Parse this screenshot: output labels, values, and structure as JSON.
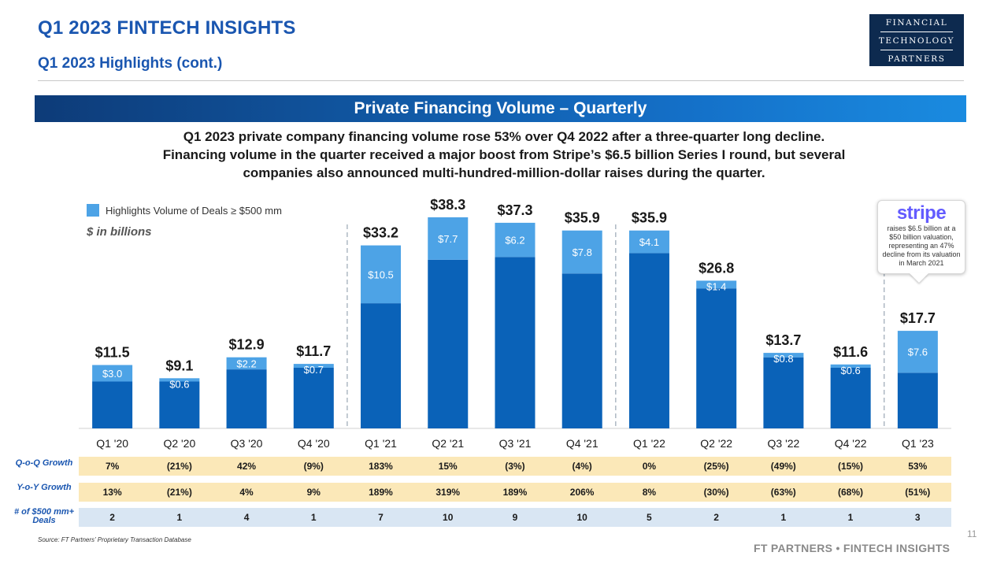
{
  "header": {
    "title": "Q1 2023 FINTECH INSIGHTS",
    "subtitle": "Q1 2023 Highlights (cont.)"
  },
  "logo": {
    "line1": "FINANCIAL",
    "line2": "TECHNOLOGY",
    "line3": "PARTNERS"
  },
  "banner": {
    "title": "Private Financing Volume – Quarterly"
  },
  "description": {
    "line1": "Q1 2023 private company financing volume rose 53% over Q4 2022 after a three-quarter long decline.",
    "line2": "Financing volume in the quarter received a major boost from Stripe’s $6.5 billion Series I round, but several",
    "line3": "companies also announced multi-hundred-million-dollar raises during the quarter."
  },
  "legend": {
    "label": "Highlights Volume of Deals ≥ $500 mm"
  },
  "units_label": "$ in billions",
  "callout": {
    "brand": "stripe",
    "text": "raises $6.5 billion at a $50 billion valuation, representing an 47% decline from its valuation in March 2021"
  },
  "chart_data": {
    "type": "bar",
    "stacked": true,
    "categories": [
      "Q1 '20",
      "Q2 '20",
      "Q3 '20",
      "Q4 '20",
      "Q1 '21",
      "Q2 '21",
      "Q3 '21",
      "Q4 '21",
      "Q1 '22",
      "Q2 '22",
      "Q3 '22",
      "Q4 '22",
      "Q1 '23"
    ],
    "total_labels": [
      "$11.5",
      "$9.1",
      "$12.9",
      "$11.7",
      "$33.2",
      "$38.3",
      "$37.3",
      "$35.9",
      "$35.9",
      "$26.8",
      "$13.7",
      "$11.6",
      "$17.7"
    ],
    "segment_labels": [
      "$3.0",
      "$0.6",
      "$2.2",
      "$0.7",
      "$10.5",
      "$7.7",
      "$6.2",
      "$7.8",
      "$4.1",
      "$1.4",
      "$0.8",
      "$0.6",
      "$7.6"
    ],
    "series": [
      {
        "values": [
          8.5,
          8.5,
          10.7,
          11.0,
          22.7,
          30.6,
          31.1,
          28.1,
          31.8,
          25.4,
          12.9,
          11.0,
          10.1
        ]
      },
      {
        "name": "Highlights Volume of Deals ≥ $500 mm",
        "values": [
          3.0,
          0.6,
          2.2,
          0.7,
          10.5,
          7.7,
          6.2,
          7.8,
          4.1,
          1.4,
          0.8,
          0.6,
          7.6
        ]
      }
    ],
    "totals": [
      11.5,
      9.1,
      12.9,
      11.7,
      33.2,
      38.3,
      37.3,
      35.9,
      35.9,
      26.8,
      13.7,
      11.6,
      17.7
    ],
    "ylim": [
      0,
      40
    ],
    "grid": false,
    "legend_position": "top-left",
    "colors": {
      "base": "#0a62b8",
      "highlight": "#4da3e6"
    }
  },
  "table": {
    "qoq_label": "Q-o-Q Growth",
    "yoy_label": "Y-o-Y Growth",
    "deals_label": "# of $500 mm+ Deals",
    "qoq": [
      "7%",
      "(21%)",
      "42%",
      "(9%)",
      "183%",
      "15%",
      "(3%)",
      "(4%)",
      "0%",
      "(25%)",
      "(49%)",
      "(15%)",
      "53%"
    ],
    "yoy": [
      "13%",
      "(21%)",
      "4%",
      "9%",
      "189%",
      "319%",
      "189%",
      "206%",
      "8%",
      "(30%)",
      "(63%)",
      "(68%)",
      "(51%)"
    ],
    "deals": [
      "2",
      "1",
      "4",
      "1",
      "7",
      "10",
      "9",
      "10",
      "5",
      "2",
      "1",
      "1",
      "3"
    ]
  },
  "footer": {
    "source": "Source: FT Partners' Proprietary Transaction Database",
    "page_number": "11",
    "brand": "FT PARTNERS • FINTECH INSIGHTS"
  }
}
